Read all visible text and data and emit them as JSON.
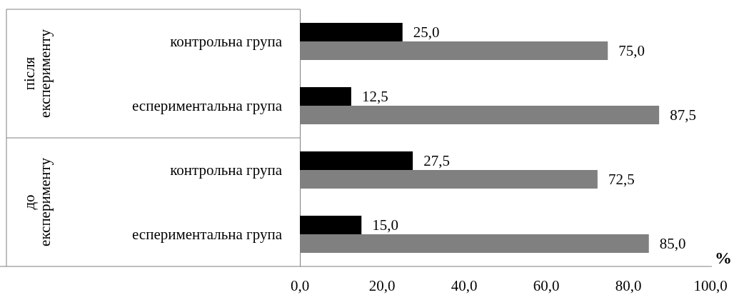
{
  "chart_data": {
    "type": "bar",
    "orientation": "horizontal",
    "xlabel": "%",
    "categories": [
      "контрольна група",
      "еспериментальна група",
      "контрольна група",
      "еспериментальна група"
    ],
    "series": [
      {
        "color": "#000000",
        "values": [
          25.0,
          12.5,
          27.5,
          15.0
        ],
        "value_labels": [
          "25,0",
          "12,5",
          "27,5",
          "15,0"
        ]
      },
      {
        "color": "#808080",
        "values": [
          75.0,
          87.5,
          72.5,
          85.0
        ],
        "value_labels": [
          "75,0",
          "87,5",
          "72,5",
          "85,0"
        ]
      }
    ],
    "annotations": [
      "після експерименту",
      "до експерименту"
    ],
    "xlim": [
      0,
      100
    ],
    "xticks": [
      {
        "value": 0,
        "label": "0,0"
      },
      {
        "value": 20,
        "label": "20,0"
      },
      {
        "value": 40,
        "label": "40,0"
      },
      {
        "value": 60,
        "label": "60,0"
      },
      {
        "value": 80,
        "label": "80,0"
      },
      {
        "value": 100,
        "label": "100,0"
      }
    ]
  }
}
